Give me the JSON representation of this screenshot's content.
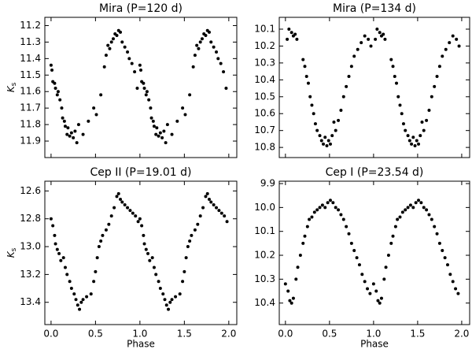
{
  "chart_data": [
    {
      "type": "scatter",
      "title": "Mira (P=120 d)",
      "ylabel": "K",
      "ylabel_sub": "s",
      "color": "#000000",
      "y_inverted": true,
      "show_xtick_labels": false,
      "xlim": [
        -0.07,
        2.09
      ],
      "ylim": [
        11.15,
        12.0
      ],
      "xticks": [
        0,
        0.5,
        1,
        1.5,
        2
      ],
      "yticks": [
        11.2,
        11.3,
        11.4,
        11.5,
        11.6,
        11.7,
        11.8,
        11.9
      ],
      "x": [
        0,
        0.01,
        0.02,
        0.04,
        0.05,
        0.07,
        0.08,
        0.1,
        0.12,
        0.13,
        0.15,
        0.16,
        0.18,
        0.19,
        0.21,
        0.23,
        0.25,
        0.27,
        0.29,
        0.31,
        0.36,
        0.42,
        0.48,
        0.51,
        0.56,
        0.6,
        0.62,
        0.64,
        0.66,
        0.68,
        0.7,
        0.72,
        0.74,
        0.76,
        0.78,
        0.8,
        0.83,
        0.86,
        0.88,
        0.91,
        0.94,
        0.97,
        1,
        1.01,
        1.02,
        1.04,
        1.05,
        1.07,
        1.08,
        1.1,
        1.12,
        1.13,
        1.15,
        1.16,
        1.18,
        1.19,
        1.21,
        1.23,
        1.25,
        1.27,
        1.29,
        1.31,
        1.36,
        1.42,
        1.48,
        1.51,
        1.56,
        1.6,
        1.62,
        1.64,
        1.66,
        1.68,
        1.7,
        1.72,
        1.74,
        1.76,
        1.78,
        1.8,
        1.83,
        1.86,
        1.88,
        1.91,
        1.94,
        1.97
      ],
      "y": [
        11.44,
        11.47,
        11.54,
        11.55,
        11.58,
        11.62,
        11.6,
        11.65,
        11.7,
        11.76,
        11.78,
        11.81,
        11.86,
        11.82,
        11.87,
        11.85,
        11.88,
        11.84,
        11.91,
        11.8,
        11.86,
        11.78,
        11.7,
        11.74,
        11.62,
        11.45,
        11.38,
        11.32,
        11.34,
        11.3,
        11.28,
        11.25,
        11.26,
        11.23,
        11.24,
        11.3,
        11.33,
        11.36,
        11.4,
        11.43,
        11.48,
        11.58,
        11.44,
        11.47,
        11.54,
        11.55,
        11.58,
        11.62,
        11.6,
        11.65,
        11.7,
        11.76,
        11.78,
        11.81,
        11.86,
        11.82,
        11.87,
        11.85,
        11.88,
        11.84,
        11.91,
        11.8,
        11.86,
        11.78,
        11.7,
        11.74,
        11.62,
        11.45,
        11.38,
        11.32,
        11.34,
        11.3,
        11.28,
        11.25,
        11.26,
        11.23,
        11.24,
        11.3,
        11.33,
        11.36,
        11.4,
        11.43,
        11.48,
        11.58
      ]
    },
    {
      "type": "scatter",
      "title": "Mira (P=134 d)",
      "color": "#000000",
      "y_inverted": true,
      "show_xtick_labels": false,
      "xlim": [
        -0.07,
        2.09
      ],
      "ylim": [
        10.03,
        10.86
      ],
      "xticks": [
        0,
        0.5,
        1,
        1.5,
        2
      ],
      "yticks": [
        10.1,
        10.2,
        10.3,
        10.4,
        10.5,
        10.6,
        10.7,
        10.8
      ],
      "x": [
        0.02,
        0.04,
        0.07,
        0.09,
        0.11,
        0.13,
        0.2,
        0.22,
        0.24,
        0.26,
        0.28,
        0.3,
        0.32,
        0.34,
        0.36,
        0.39,
        0.41,
        0.43,
        0.45,
        0.47,
        0.49,
        0.51,
        0.53,
        0.55,
        0.57,
        0.6,
        0.63,
        0.66,
        0.69,
        0.72,
        0.75,
        0.78,
        0.82,
        0.86,
        0.9,
        0.94,
        0.97,
        1.02,
        1.04,
        1.07,
        1.09,
        1.11,
        1.13,
        1.2,
        1.22,
        1.24,
        1.26,
        1.28,
        1.3,
        1.32,
        1.34,
        1.36,
        1.39,
        1.41,
        1.43,
        1.45,
        1.47,
        1.49,
        1.51,
        1.53,
        1.55,
        1.57,
        1.6,
        1.63,
        1.66,
        1.69,
        1.72,
        1.75,
        1.78,
        1.82,
        1.86,
        1.9,
        1.94,
        1.97
      ],
      "y": [
        10.16,
        10.1,
        10.12,
        10.14,
        10.13,
        10.16,
        10.28,
        10.32,
        10.38,
        10.42,
        10.5,
        10.55,
        10.6,
        10.66,
        10.7,
        10.73,
        10.76,
        10.78,
        10.74,
        10.79,
        10.76,
        10.78,
        10.73,
        10.65,
        10.7,
        10.64,
        10.58,
        10.5,
        10.44,
        10.38,
        10.32,
        10.26,
        10.22,
        10.18,
        10.14,
        10.16,
        10.2,
        10.16,
        10.1,
        10.12,
        10.14,
        10.13,
        10.16,
        10.28,
        10.32,
        10.38,
        10.42,
        10.5,
        10.55,
        10.6,
        10.66,
        10.7,
        10.73,
        10.76,
        10.78,
        10.74,
        10.79,
        10.76,
        10.78,
        10.73,
        10.65,
        10.7,
        10.64,
        10.58,
        10.5,
        10.44,
        10.38,
        10.32,
        10.26,
        10.22,
        10.18,
        10.14,
        10.16,
        10.2
      ]
    },
    {
      "type": "scatter",
      "title": "Cep II (P=19.01 d)",
      "xlabel": "Phase",
      "ylabel": "K",
      "ylabel_sub": "s",
      "color": "#000000",
      "y_inverted": true,
      "show_xtick_labels": true,
      "xlim": [
        -0.07,
        2.09
      ],
      "ylim": [
        12.53,
        13.56
      ],
      "xticks": [
        {
          "value": 0,
          "label": "0.0"
        },
        0.5,
        {
          "value": 1,
          "label": "1.0"
        },
        1.5,
        {
          "value": 2,
          "label": "2.0"
        }
      ],
      "yticks": [
        12.6,
        12.8,
        {
          "value": 13,
          "label": "13.0"
        },
        13.2,
        13.4
      ],
      "x": [
        0,
        0.02,
        0.04,
        0.05,
        0.07,
        0.09,
        0.11,
        0.14,
        0.16,
        0.18,
        0.21,
        0.23,
        0.26,
        0.28,
        0.3,
        0.32,
        0.34,
        0.36,
        0.4,
        0.45,
        0.48,
        0.5,
        0.52,
        0.54,
        0.56,
        0.58,
        0.62,
        0.65,
        0.68,
        0.71,
        0.74,
        0.76,
        0.78,
        0.8,
        0.83,
        0.86,
        0.89,
        0.92,
        0.95,
        0.98,
        1,
        1.02,
        1.04,
        1.05,
        1.07,
        1.09,
        1.11,
        1.14,
        1.16,
        1.18,
        1.21,
        1.23,
        1.26,
        1.28,
        1.3,
        1.32,
        1.34,
        1.36,
        1.4,
        1.45,
        1.48,
        1.5,
        1.52,
        1.54,
        1.56,
        1.58,
        1.62,
        1.65,
        1.68,
        1.71,
        1.74,
        1.76,
        1.78,
        1.8,
        1.83,
        1.86,
        1.89,
        1.92,
        1.95,
        1.98
      ],
      "y": [
        12.8,
        12.85,
        12.92,
        12.98,
        13.02,
        13.05,
        13.1,
        13.08,
        13.15,
        13.2,
        13.25,
        13.3,
        13.34,
        13.38,
        13.42,
        13.45,
        13.4,
        13.38,
        13.36,
        13.34,
        13.25,
        13.18,
        13.08,
        13,
        12.96,
        12.92,
        12.88,
        12.84,
        12.78,
        12.72,
        12.64,
        12.62,
        12.66,
        12.68,
        12.7,
        12.72,
        12.74,
        12.76,
        12.78,
        12.82,
        12.8,
        12.85,
        12.92,
        12.98,
        13.02,
        13.05,
        13.1,
        13.08,
        13.15,
        13.2,
        13.25,
        13.3,
        13.34,
        13.38,
        13.42,
        13.45,
        13.4,
        13.38,
        13.36,
        13.34,
        13.25,
        13.18,
        13.08,
        13,
        12.96,
        12.92,
        12.88,
        12.84,
        12.78,
        12.72,
        12.64,
        12.62,
        12.66,
        12.68,
        12.7,
        12.72,
        12.74,
        12.76,
        12.78,
        12.82
      ]
    },
    {
      "type": "scatter",
      "title": "Cep I (P=23.54 d)",
      "xlabel": "Phase",
      "color": "#000000",
      "y_inverted": true,
      "show_xtick_labels": true,
      "xlim": [
        -0.07,
        2.09
      ],
      "ylim": [
        9.89,
        10.49
      ],
      "xticks": [
        {
          "value": 0,
          "label": "0.0"
        },
        0.5,
        {
          "value": 1,
          "label": "1.0"
        },
        1.5,
        {
          "value": 2,
          "label": "2.0"
        }
      ],
      "yticks": [
        9.9,
        {
          "value": 10,
          "label": "10.0"
        },
        10.1,
        10.2,
        10.3,
        10.4
      ],
      "x": [
        0,
        0.03,
        0.05,
        0.07,
        0.09,
        0.12,
        0.14,
        0.17,
        0.2,
        0.22,
        0.25,
        0.27,
        0.3,
        0.33,
        0.36,
        0.39,
        0.42,
        0.45,
        0.48,
        0.51,
        0.54,
        0.57,
        0.6,
        0.63,
        0.66,
        0.69,
        0.72,
        0.75,
        0.78,
        0.81,
        0.84,
        0.87,
        0.9,
        0.93,
        0.96,
        1,
        1.03,
        1.05,
        1.07,
        1.09,
        1.12,
        1.14,
        1.17,
        1.2,
        1.22,
        1.25,
        1.27,
        1.3,
        1.33,
        1.36,
        1.39,
        1.42,
        1.45,
        1.48,
        1.51,
        1.54,
        1.57,
        1.6,
        1.63,
        1.66,
        1.69,
        1.72,
        1.75,
        1.78,
        1.81,
        1.84,
        1.87,
        1.9,
        1.93,
        1.96
      ],
      "y": [
        10.32,
        10.35,
        10.39,
        10.4,
        10.38,
        10.3,
        10.25,
        10.2,
        10.15,
        10.12,
        10.08,
        10.05,
        10.04,
        10.02,
        10.01,
        10,
        9.99,
        10,
        9.98,
        9.97,
        9.98,
        10,
        10.01,
        10.03,
        10.05,
        10.08,
        10.11,
        10.15,
        10.18,
        10.21,
        10.24,
        10.28,
        10.31,
        10.34,
        10.36,
        10.32,
        10.35,
        10.39,
        10.4,
        10.38,
        10.3,
        10.25,
        10.2,
        10.15,
        10.12,
        10.08,
        10.05,
        10.04,
        10.02,
        10.01,
        10,
        9.99,
        10,
        9.98,
        9.97,
        9.98,
        10,
        10.01,
        10.03,
        10.05,
        10.08,
        10.11,
        10.15,
        10.18,
        10.21,
        10.24,
        10.28,
        10.31,
        10.34,
        10.36
      ]
    }
  ]
}
